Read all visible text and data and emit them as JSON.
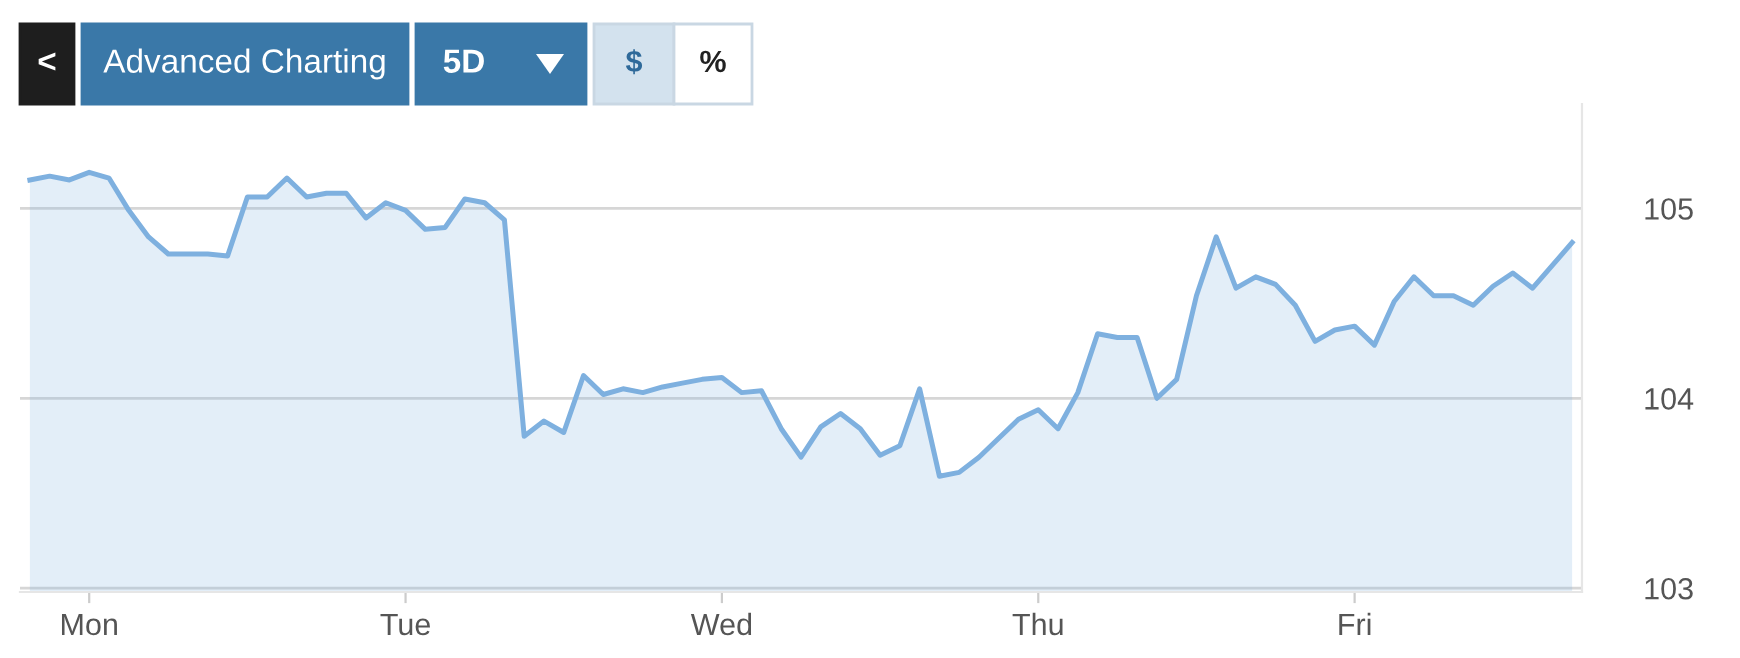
{
  "chart_data": {
    "type": "area",
    "annotations": [
      "<",
      "Advanced Charting",
      "5D",
      "$",
      "%"
    ],
    "categories": [
      null,
      null,
      null,
      "Mon",
      null,
      null,
      null,
      null,
      null,
      null,
      null,
      null,
      null,
      null,
      null,
      null,
      null,
      null,
      null,
      "Tue",
      null,
      null,
      null,
      null,
      null,
      null,
      null,
      null,
      null,
      null,
      null,
      null,
      null,
      null,
      null,
      "Wed",
      null,
      null,
      null,
      null,
      null,
      null,
      null,
      null,
      null,
      null,
      null,
      null,
      null,
      null,
      null,
      "Thu",
      null,
      null,
      null,
      null,
      null,
      null,
      null,
      null,
      null,
      null,
      null,
      null,
      null,
      null,
      null,
      "Fri",
      null,
      null,
      null,
      null,
      null,
      null,
      null,
      null,
      null,
      null,
      null
    ],
    "series": [
      {
        "color": "#7eb0df",
        "values": [
          105.15,
          105.17,
          105.15,
          105.19,
          105.16,
          104.99,
          104.85,
          104.76,
          104.76,
          104.76,
          104.75,
          105.06,
          105.06,
          105.16,
          105.06,
          105.08,
          105.08,
          104.95,
          105.03,
          104.99,
          104.89,
          104.9,
          105.05,
          105.03,
          104.94,
          103.8,
          103.88,
          103.82,
          104.12,
          104.02,
          104.05,
          104.03,
          104.06,
          104.08,
          104.1,
          104.11,
          104.03,
          104.04,
          103.84,
          103.69,
          103.85,
          103.92,
          103.84,
          103.7,
          103.75,
          104.05,
          103.59,
          103.61,
          103.69,
          103.79,
          103.89,
          103.94,
          103.84,
          104.03,
          104.34,
          104.32,
          104.32,
          104.0,
          104.1,
          104.54,
          104.85,
          104.58,
          104.64,
          104.6,
          104.49,
          104.3,
          104.36,
          104.38,
          104.28,
          104.51,
          104.64,
          104.54,
          104.54,
          104.49,
          104.59,
          104.66,
          104.58,
          104.7,
          104.82
        ]
      }
    ],
    "ylim": [
      102.98,
      105.55
    ],
    "yticks": [
      103,
      104,
      105
    ],
    "grid": "y"
  }
}
